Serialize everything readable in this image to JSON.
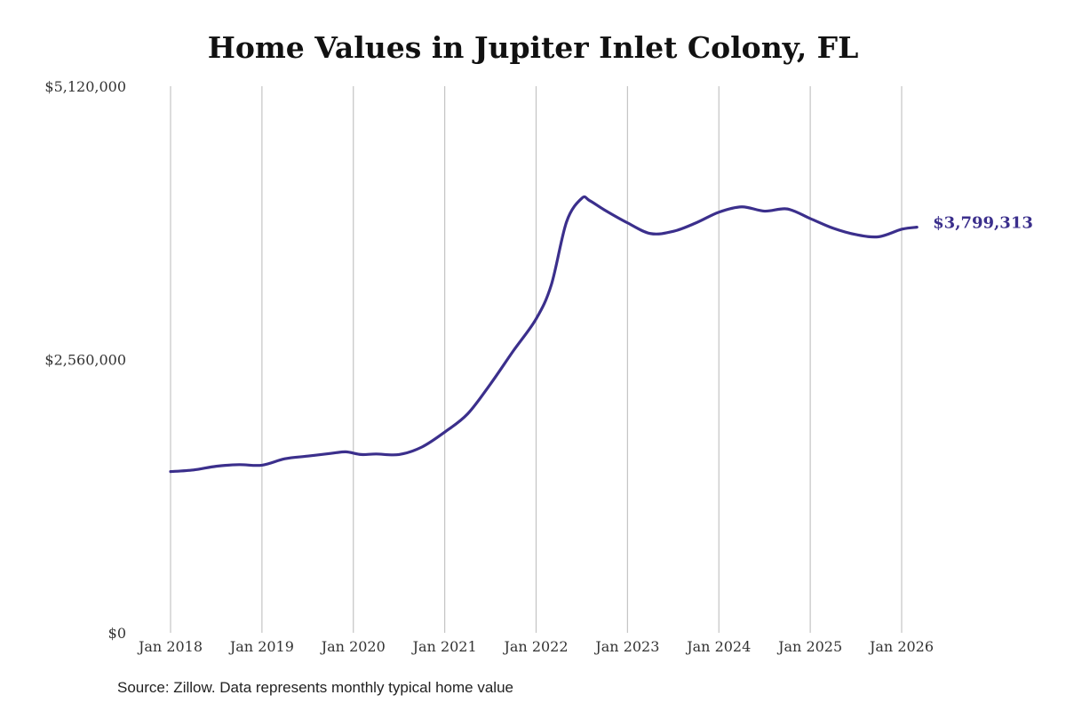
{
  "chart_data": {
    "type": "line",
    "title": "Home Values in Jupiter Inlet Colony, FL",
    "xlabel": "",
    "ylabel": "",
    "source": "Source: Zillow. Data represents monthly typical home value",
    "ylim": [
      0,
      5120000
    ],
    "yticks": [
      {
        "value": 0,
        "label": "$0"
      },
      {
        "value": 2560000,
        "label": "$2,560,000"
      },
      {
        "value": 5120000,
        "label": "$5,120,000"
      }
    ],
    "xticks": [
      {
        "value": "2018-01",
        "label": "Jan 2018"
      },
      {
        "value": "2019-01",
        "label": "Jan 2019"
      },
      {
        "value": "2020-01",
        "label": "Jan 2020"
      },
      {
        "value": "2021-01",
        "label": "Jan 2021"
      },
      {
        "value": "2022-01",
        "label": "Jan 2022"
      },
      {
        "value": "2023-01",
        "label": "Jan 2023"
      },
      {
        "value": "2024-01",
        "label": "Jan 2024"
      },
      {
        "value": "2025-01",
        "label": "Jan 2025"
      },
      {
        "value": "2026-01",
        "label": "Jan 2026"
      }
    ],
    "grid": "vertical",
    "line_color": "#3b2f8c",
    "end_label": "$3,799,313",
    "series": [
      {
        "points": [
          [
            "2018-01",
            1510000
          ],
          [
            "2018-04",
            1525000
          ],
          [
            "2018-07",
            1560000
          ],
          [
            "2018-10",
            1575000
          ],
          [
            "2019-01",
            1570000
          ],
          [
            "2019-04",
            1630000
          ],
          [
            "2019-07",
            1655000
          ],
          [
            "2019-10",
            1680000
          ],
          [
            "2019-12",
            1695000
          ],
          [
            "2020-02",
            1670000
          ],
          [
            "2020-04",
            1675000
          ],
          [
            "2020-07",
            1670000
          ],
          [
            "2020-10",
            1740000
          ],
          [
            "2021-01",
            1880000
          ],
          [
            "2021-04",
            2050000
          ],
          [
            "2021-07",
            2330000
          ],
          [
            "2021-10",
            2640000
          ],
          [
            "2022-01",
            2940000
          ],
          [
            "2022-03",
            3260000
          ],
          [
            "2022-05",
            3850000
          ],
          [
            "2022-07",
            4070000
          ],
          [
            "2022-08",
            4050000
          ],
          [
            "2022-10",
            3960000
          ],
          [
            "2023-01",
            3840000
          ],
          [
            "2023-04",
            3740000
          ],
          [
            "2023-07",
            3760000
          ],
          [
            "2023-10",
            3840000
          ],
          [
            "2024-01",
            3940000
          ],
          [
            "2024-04",
            3990000
          ],
          [
            "2024-07",
            3950000
          ],
          [
            "2024-10",
            3970000
          ],
          [
            "2025-01",
            3880000
          ],
          [
            "2025-04",
            3790000
          ],
          [
            "2025-07",
            3730000
          ],
          [
            "2025-10",
            3710000
          ],
          [
            "2026-01",
            3780000
          ],
          [
            "2026-03",
            3799313
          ]
        ]
      }
    ]
  }
}
